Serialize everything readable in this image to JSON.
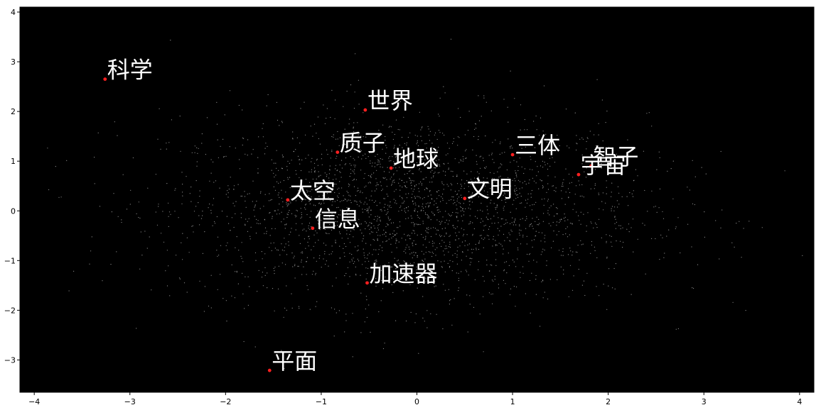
{
  "chart_data": {
    "type": "scatter",
    "title": "",
    "xlabel": "",
    "ylabel": "",
    "xlim": [
      -4.15,
      4.15
    ],
    "ylim": [
      -3.65,
      4.1
    ],
    "xticks": [
      -4,
      -3,
      -2,
      -1,
      0,
      1,
      2,
      3,
      4
    ],
    "yticks": [
      -3,
      -2,
      -1,
      0,
      1,
      2,
      3,
      4
    ],
    "xtick_labels": [
      "−4",
      "−3",
      "−2",
      "−1",
      "0",
      "1",
      "2",
      "3",
      "4"
    ],
    "ytick_labels": [
      "−3",
      "−2",
      "−1",
      "0",
      "1",
      "2",
      "3",
      "4"
    ],
    "grid": false,
    "background_color": "#000000",
    "background_point_color": "#bdbdbd",
    "highlight_point_color": "#ff2020",
    "label_color": "#ffffff",
    "background_points": {
      "count": 2600,
      "center": [
        -0.1,
        0.05
      ],
      "spread": [
        1.25,
        0.95
      ]
    },
    "highlighted_points": [
      {
        "label": "科学",
        "x": -3.26,
        "y": 2.65
      },
      {
        "label": "世界",
        "x": -0.54,
        "y": 2.03
      },
      {
        "label": "质子",
        "x": -0.83,
        "y": 1.18
      },
      {
        "label": "地球",
        "x": -0.27,
        "y": 0.86
      },
      {
        "label": "三体",
        "x": 1.0,
        "y": 1.13
      },
      {
        "label": "智子",
        "x": 1.82,
        "y": 0.9
      },
      {
        "label": "宇宙",
        "x": 1.69,
        "y": 0.73
      },
      {
        "label": "太空",
        "x": -1.35,
        "y": 0.22
      },
      {
        "label": "文明",
        "x": 0.5,
        "y": 0.25
      },
      {
        "label": "信息",
        "x": -1.09,
        "y": -0.35
      },
      {
        "label": "加速器",
        "x": -0.52,
        "y": -1.45
      },
      {
        "label": "平面",
        "x": -1.54,
        "y": -3.21
      }
    ]
  }
}
